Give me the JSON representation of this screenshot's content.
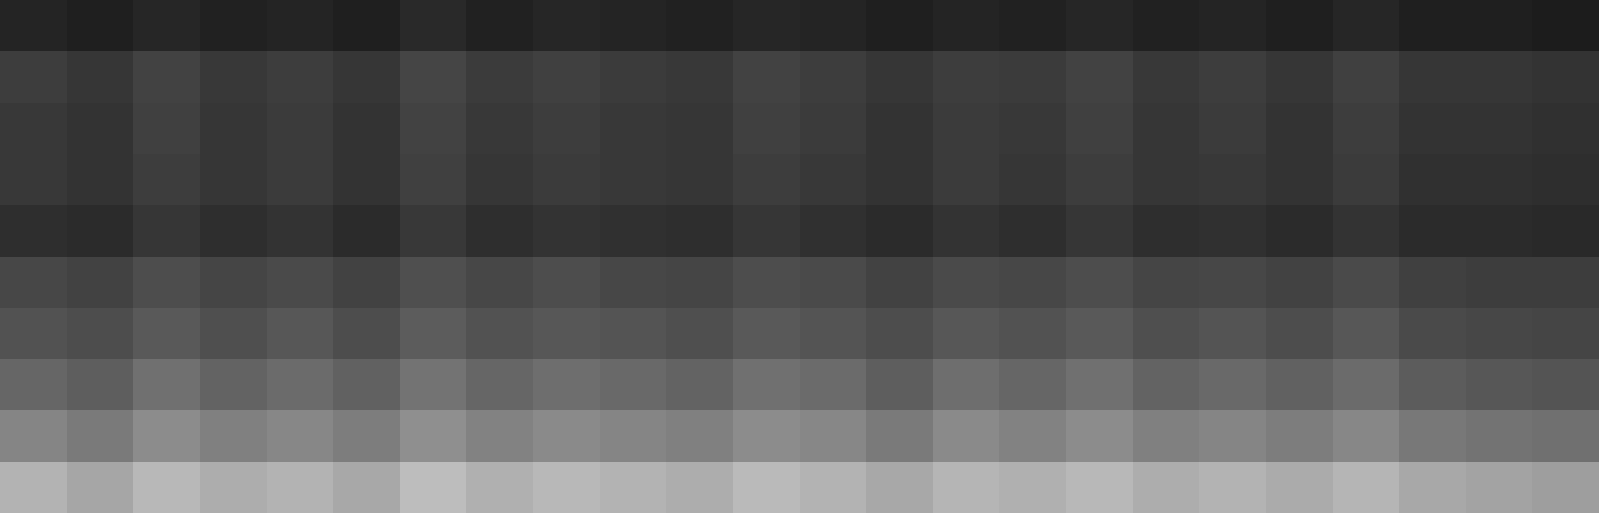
{
  "chart_data": {
    "type": "heatmap",
    "tick_labels": false,
    "zlim": [
      0,
      100
    ],
    "cells": [
      [
        70,
        65,
        72,
        68,
        70,
        66,
        74,
        69,
        72,
        70,
        68,
        73,
        70,
        66,
        71,
        69,
        72,
        68,
        70,
        67,
        71,
        66,
        64,
        62
      ],
      [
        52,
        48,
        55,
        50,
        53,
        49,
        56,
        51,
        54,
        52,
        50,
        55,
        53,
        48,
        54,
        51,
        55,
        50,
        52,
        49,
        53,
        47,
        45,
        44
      ],
      [
        40,
        37,
        44,
        39,
        42,
        38,
        45,
        40,
        43,
        41,
        39,
        44,
        42,
        37,
        43,
        40,
        44,
        39,
        41,
        38,
        42,
        36,
        34,
        33
      ],
      [
        32,
        30,
        35,
        31,
        34,
        30,
        36,
        32,
        34,
        33,
        31,
        35,
        33,
        30,
        34,
        32,
        35,
        31,
        33,
        30,
        34,
        29,
        28,
        27
      ],
      [
        28,
        26,
        30,
        27,
        29,
        26,
        31,
        28,
        30,
        28,
        27,
        30,
        29,
        26,
        29,
        28,
        30,
        27,
        28,
        26,
        29,
        25,
        24,
        24
      ],
      [
        18,
        17,
        21,
        18,
        20,
        17,
        22,
        18,
        20,
        19,
        18,
        21,
        19,
        17,
        20,
        18,
        21,
        18,
        19,
        17,
        20,
        17,
        17,
        16
      ],
      [
        22,
        20,
        24,
        21,
        23,
        20,
        25,
        21,
        23,
        22,
        21,
        24,
        22,
        20,
        23,
        21,
        24,
        21,
        22,
        20,
        23,
        19,
        19,
        18
      ],
      [
        22,
        20,
        25,
        21,
        23,
        20,
        26,
        22,
        24,
        22,
        21,
        25,
        23,
        20,
        23,
        22,
        25,
        21,
        23,
        20,
        24,
        20,
        20,
        19
      ],
      [
        24,
        21,
        26,
        22,
        24,
        21,
        27,
        23,
        25,
        23,
        22,
        26,
        24,
        21,
        24,
        23,
        26,
        22,
        24,
        21,
        25,
        21,
        21,
        20
      ],
      [
        14,
        12,
        15,
        13,
        14,
        12,
        16,
        13,
        15,
        14,
        13,
        15,
        14,
        12,
        14,
        13,
        15,
        13,
        14,
        12,
        15,
        12,
        12,
        11
      ]
    ]
  }
}
